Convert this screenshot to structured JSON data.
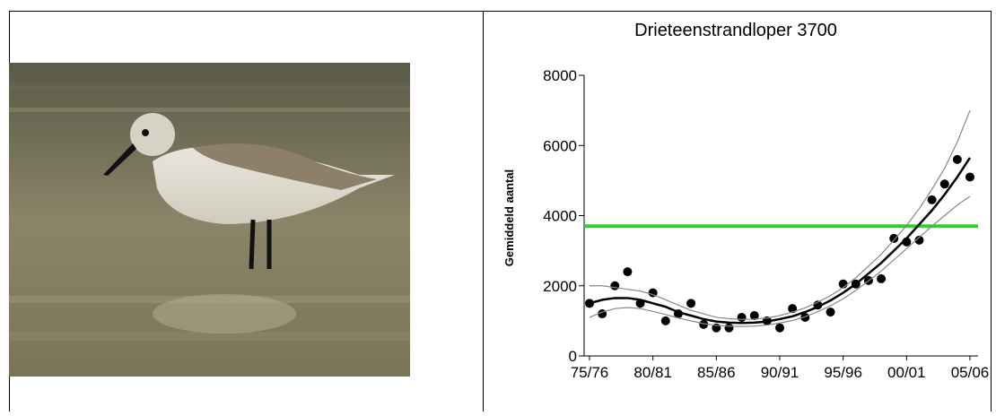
{
  "chart_data": {
    "type": "line",
    "title": "Drieteenstrandloper 3700",
    "y_label": "Gemiddeld aantal",
    "categories": [
      "75/76",
      null,
      null,
      null,
      null,
      "80/81",
      null,
      null,
      null,
      null,
      "85/86",
      null,
      null,
      null,
      null,
      "90/91",
      null,
      null,
      null,
      null,
      "95/96",
      null,
      null,
      null,
      null,
      "00/01",
      null,
      null,
      null,
      null,
      "05/06"
    ],
    "ylim": [
      0,
      8000
    ],
    "yticks": [
      0,
      2000,
      4000,
      6000,
      8000
    ],
    "threshold": 3700,
    "threshold_color": "#33cc33",
    "series": [
      {
        "color": "#000000",
        "mode": "markers",
        "values": [
          1500,
          1200,
          2000,
          2400,
          1500,
          1800,
          1000,
          1200,
          1500,
          900,
          800,
          800,
          1100,
          1150,
          1000,
          800,
          1350,
          1100,
          1450,
          1250,
          2050,
          2050,
          2150,
          2200,
          3350,
          3250,
          3300,
          4450,
          4900,
          5600,
          5100
        ]
      },
      {
        "color": "#000000",
        "mode": "line",
        "line_width": 2.5,
        "values": [
          1500,
          1600,
          1650,
          1650,
          1600,
          1500,
          1400,
          1250,
          1150,
          1050,
          980,
          950,
          940,
          950,
          980,
          1050,
          1130,
          1250,
          1400,
          1580,
          1800,
          2050,
          2350,
          2650,
          3000,
          3350,
          3750,
          4150,
          4600,
          5100,
          5650
        ]
      },
      {
        "color": "#888888",
        "mode": "line",
        "line_width": 1.2,
        "values": [
          2000,
          2000,
          1950,
          1900,
          1850,
          1750,
          1600,
          1450,
          1300,
          1200,
          1100,
          1060,
          1040,
          1050,
          1080,
          1150,
          1250,
          1370,
          1530,
          1720,
          1950,
          2230,
          2560,
          2900,
          3300,
          3720,
          4200,
          4750,
          5350,
          6100,
          7000
        ]
      },
      {
        "color": "#888888",
        "mode": "line",
        "line_width": 1.2,
        "values": [
          1100,
          1250,
          1350,
          1380,
          1350,
          1270,
          1180,
          1080,
          1000,
          920,
          870,
          850,
          840,
          850,
          880,
          940,
          1010,
          1120,
          1260,
          1430,
          1630,
          1870,
          2140,
          2420,
          2740,
          3060,
          3380,
          3700,
          4000,
          4300,
          4550
        ]
      }
    ]
  }
}
